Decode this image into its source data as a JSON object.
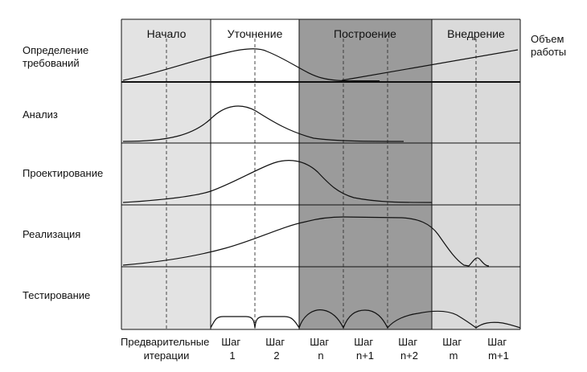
{
  "phases": [
    {
      "label": "Начало",
      "fill": "#e3e3e3"
    },
    {
      "label": "Уточнение",
      "fill": "#ffffff"
    },
    {
      "label": "Построение",
      "fill": "#9b9b9b"
    },
    {
      "label": "Внедрение",
      "fill": "#dadada"
    }
  ],
  "disciplines": [
    {
      "lines": [
        "Определение",
        "требований"
      ]
    },
    {
      "lines": [
        "Анализ"
      ]
    },
    {
      "lines": [
        "Проектирование"
      ]
    },
    {
      "lines": [
        "Реализация"
      ]
    },
    {
      "lines": [
        "Тестирование"
      ]
    }
  ],
  "callout": {
    "lines": [
      "Объем",
      "работы"
    ]
  },
  "iterations": [
    {
      "lines": [
        "Предварительные",
        "итерации"
      ]
    },
    {
      "lines": [
        "Шаг",
        "1"
      ]
    },
    {
      "lines": [
        "Шаг",
        "2"
      ]
    },
    {
      "lines": [
        "Шаг",
        "n"
      ]
    },
    {
      "lines": [
        "Шаг",
        "n+1"
      ]
    },
    {
      "lines": [
        "Шаг",
        "n+2"
      ]
    },
    {
      "lines": [
        "Шаг",
        "m"
      ]
    },
    {
      "lines": [
        "Шаг",
        "m+1"
      ]
    }
  ]
}
